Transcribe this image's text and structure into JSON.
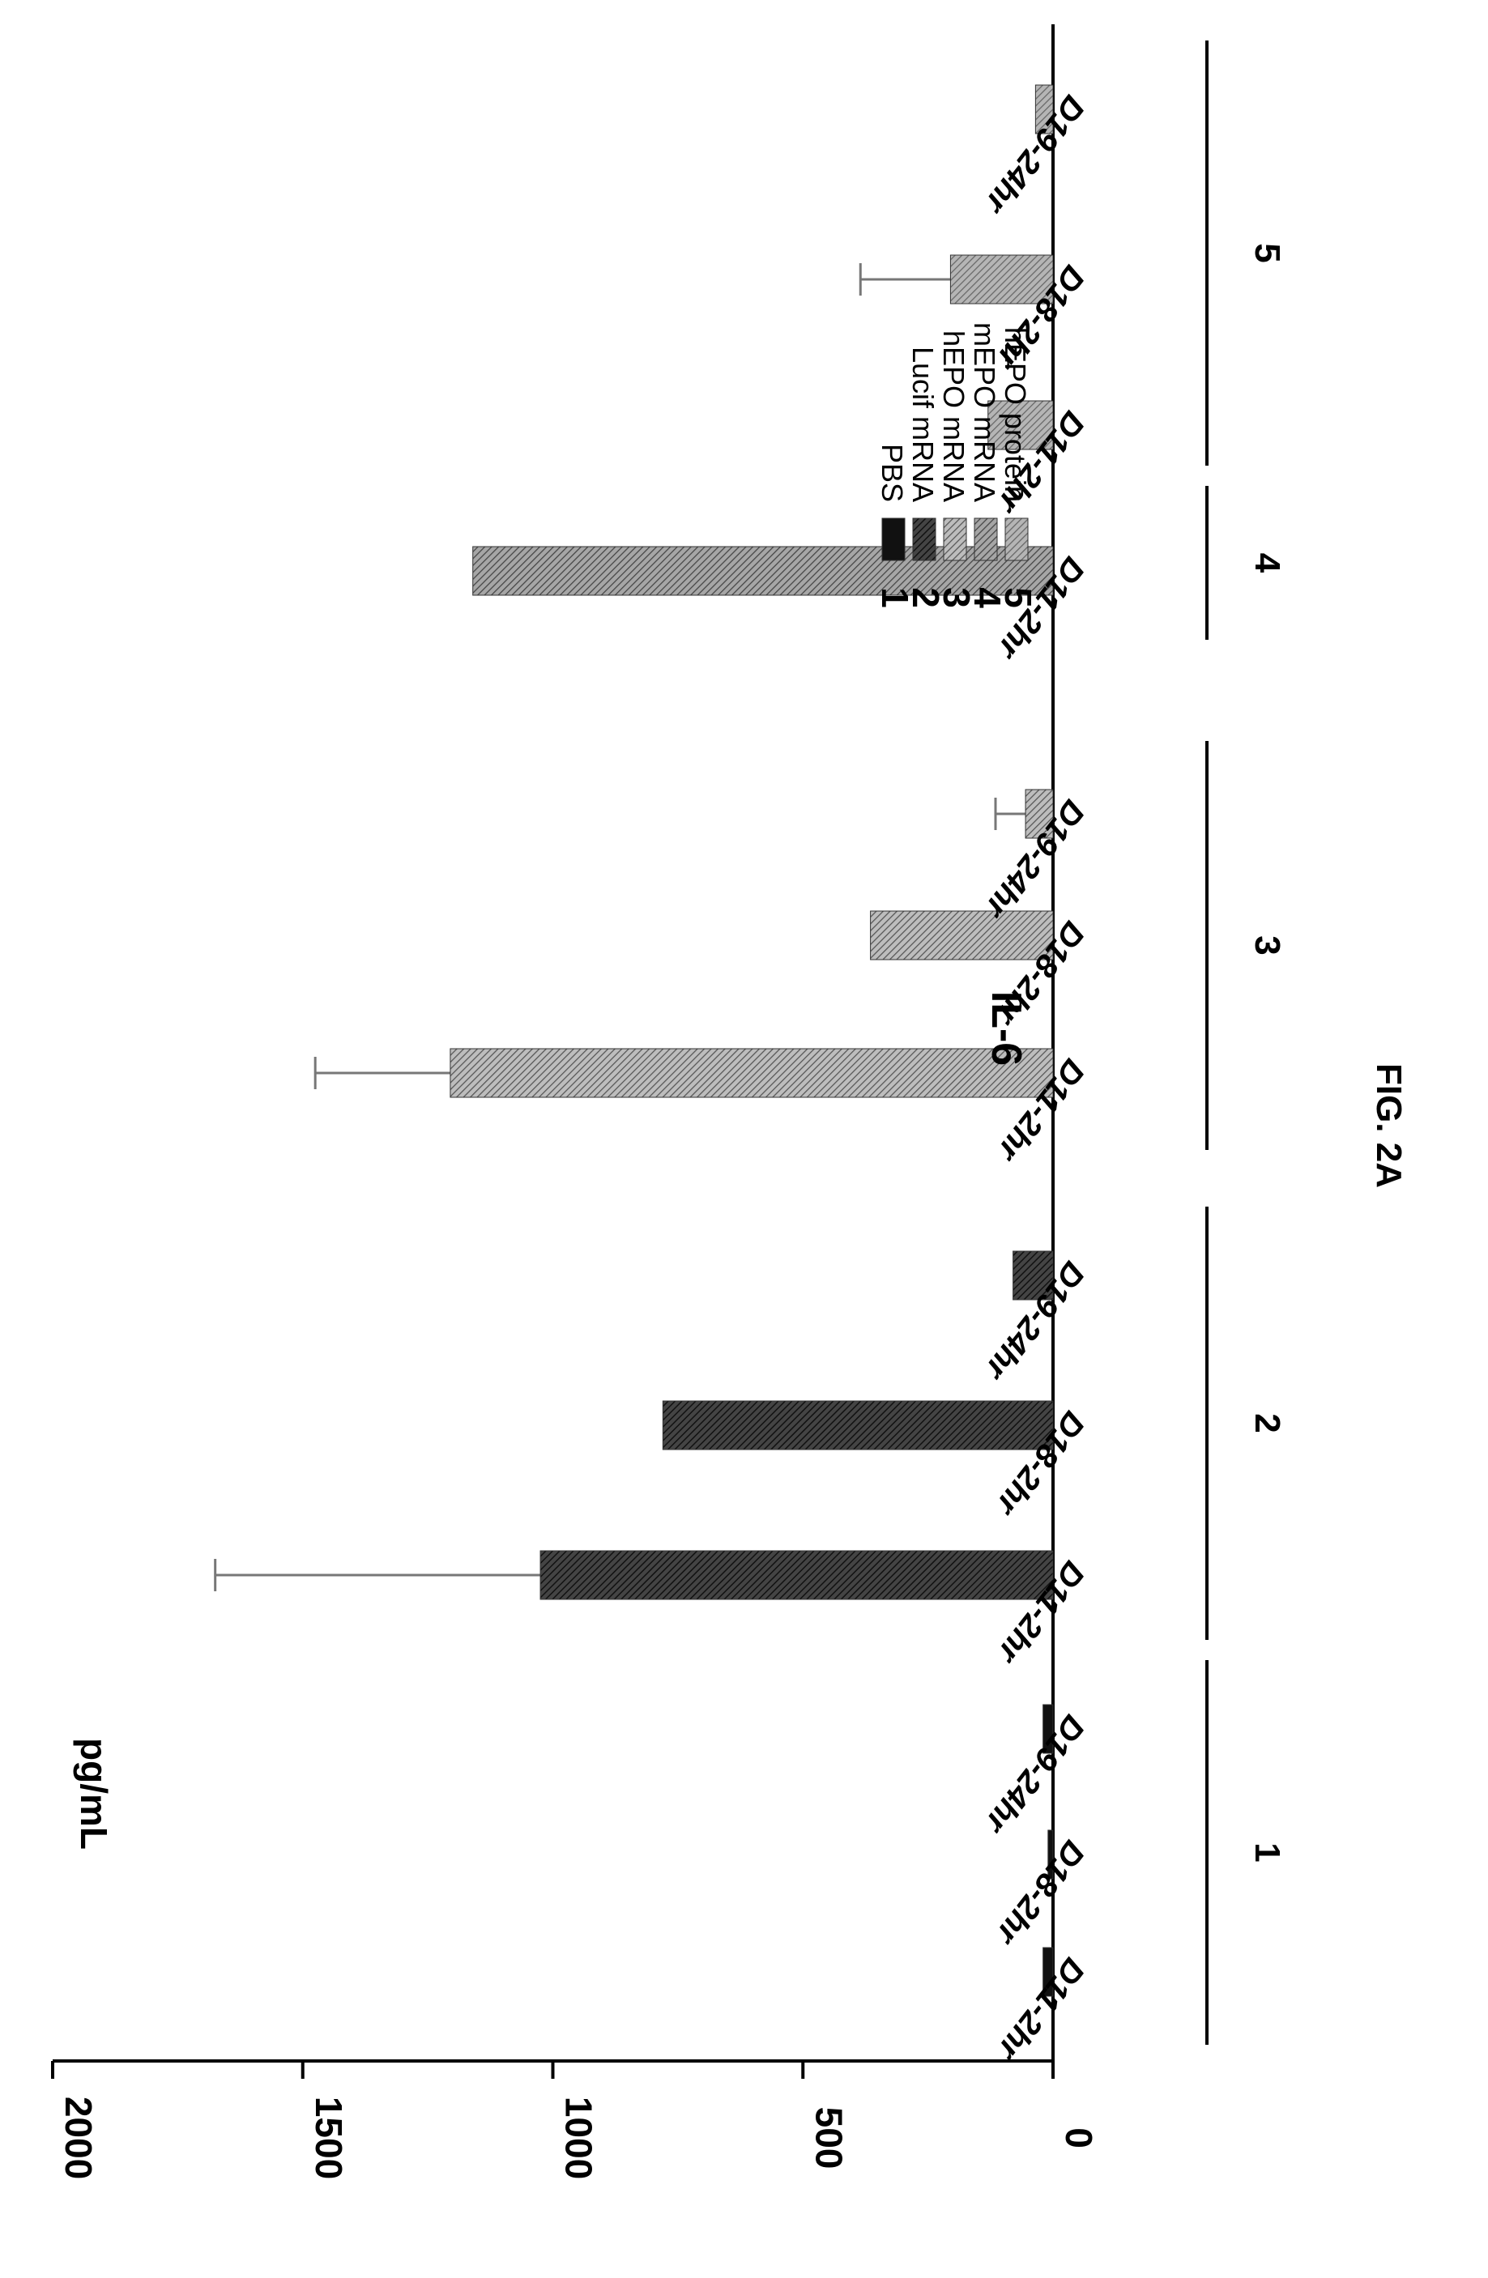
{
  "chart_data": {
    "type": "bar",
    "title": "IL-6",
    "ylabel": "pg/mL",
    "xlabel": "",
    "ylim": [
      0,
      2000
    ],
    "yticks": [
      "0",
      "500",
      "1000",
      "1500",
      "2000"
    ],
    "orientation": "rotated-90-clockwise",
    "groups": [
      {
        "label": "1",
        "series": "PBS",
        "categories": [
          "D11-2hr",
          "D18-2hr",
          "D19-24hr"
        ],
        "values": [
          20,
          10,
          20
        ],
        "errors": [
          null,
          null,
          null
        ]
      },
      {
        "label": "2",
        "series": "Lucif mRNA",
        "categories": [
          "D11-2hr",
          "D18-2hr",
          "D19-24hr"
        ],
        "values": [
          1025,
          780,
          80
        ],
        "errors": [
          650,
          null,
          null
        ]
      },
      {
        "label": "3",
        "series": "hEPO mRNA",
        "categories": [
          "D11-2hr",
          "D18-2hr",
          "D19-24hr"
        ],
        "values": [
          1205,
          365,
          55
        ],
        "errors": [
          270,
          null,
          60
        ]
      },
      {
        "label": "4",
        "series": "mEPO mRNA",
        "categories": [
          "D11-2hr"
        ],
        "values": [
          1160
        ],
        "errors": [
          null
        ]
      },
      {
        "label": "5",
        "series": "hEPO protein",
        "categories": [
          "D11-2hr",
          "D18-2hr",
          "D19-24hr"
        ],
        "values": [
          130,
          205,
          35
        ],
        "errors": [
          null,
          180,
          null
        ]
      }
    ],
    "legend": {
      "position": "top-right",
      "entries": [
        {
          "num": "1",
          "label": "PBS",
          "color": "#111111"
        },
        {
          "num": "2",
          "label": "Lucif mRNA",
          "color": "#333333"
        },
        {
          "num": "3",
          "label": "hEPO mRNA",
          "color": "#8e8e8e"
        },
        {
          "num": "4",
          "label": "mEPO mRNA",
          "color": "#7a7a7a"
        },
        {
          "num": "5",
          "label": "hEPO protein",
          "color": "#9a9a9a"
        }
      ]
    },
    "caption": "FIG. 2A"
  }
}
